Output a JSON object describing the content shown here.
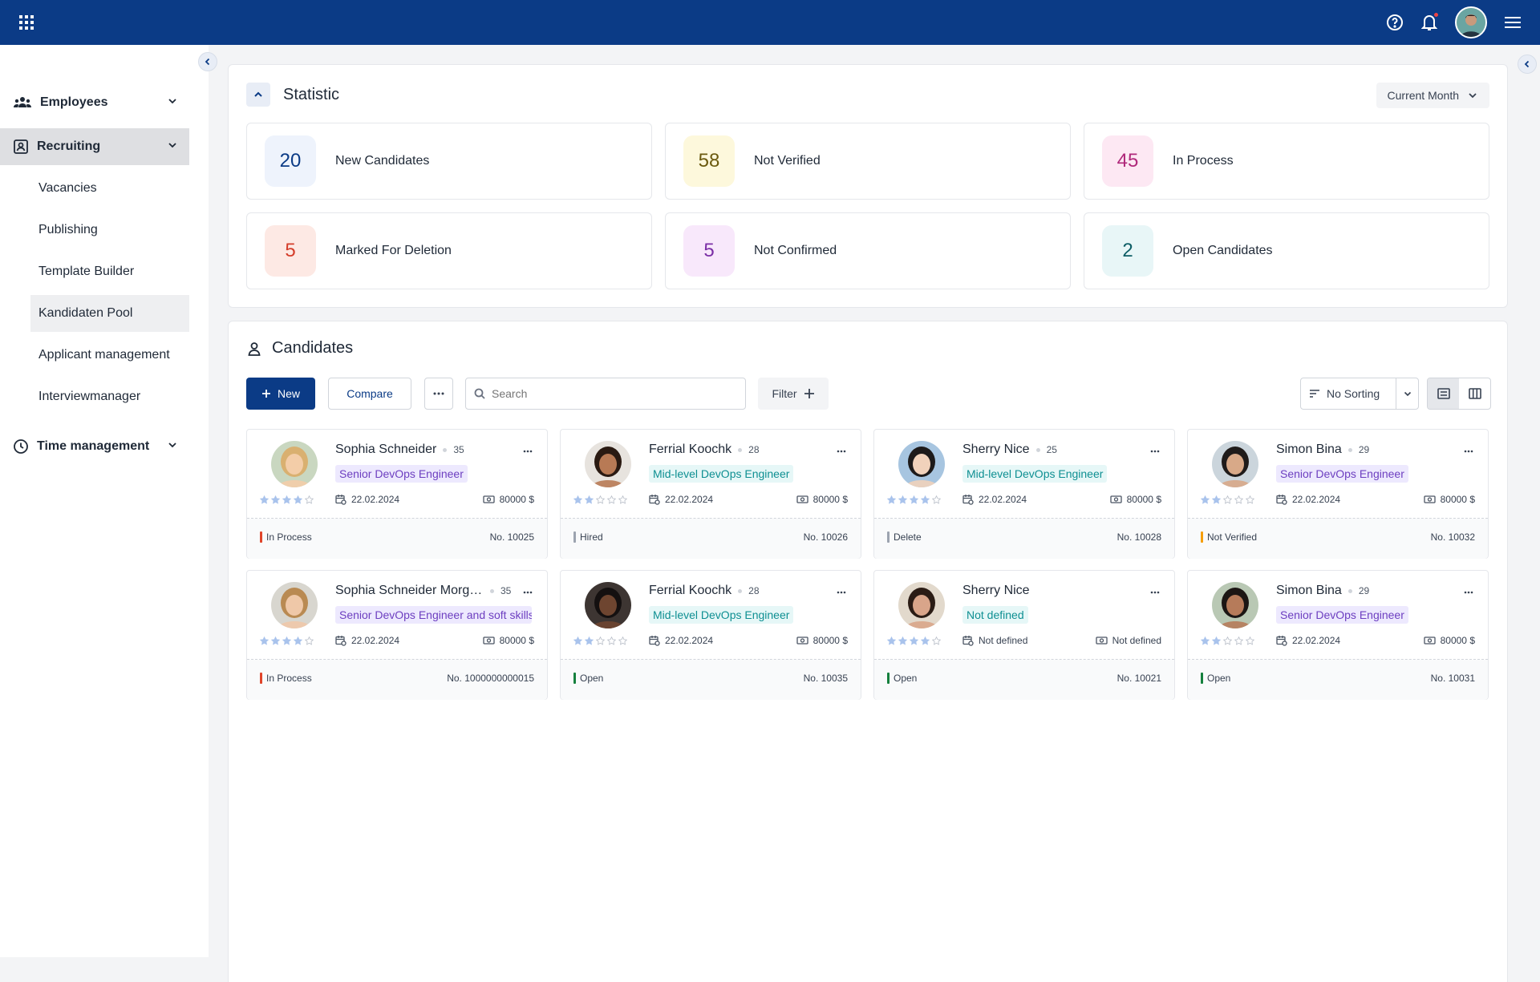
{
  "header": {
    "apps_icon": "apps-grid-icon",
    "help_icon": "help-circle-icon",
    "bell_icon": "bell-icon",
    "menu_icon": "hamburger-menu-icon"
  },
  "sidebar": {
    "groups": [
      {
        "label": "Employees",
        "icon": "people-icon"
      },
      {
        "label": "Recruiting",
        "icon": "id-card-icon"
      },
      {
        "label": "Time management",
        "icon": "clock-icon"
      }
    ],
    "recruiting_items": [
      {
        "label": "Vacancies"
      },
      {
        "label": "Publishing"
      },
      {
        "label": "Template Builder"
      },
      {
        "label": "Kandidaten Pool"
      },
      {
        "label": "Applicant management"
      },
      {
        "label": "Interviewmanager"
      }
    ]
  },
  "statistic": {
    "title": "Statistic",
    "period": "Current Month",
    "cards": [
      {
        "value": "20",
        "label": "New Candidates",
        "color": "#0b3b86",
        "bg": "#eef3fc"
      },
      {
        "value": "58",
        "label": "Not Verified",
        "color": "#6b5a0f",
        "bg": "#fdf8dc"
      },
      {
        "value": "45",
        "label": "In Process",
        "color": "#b0287a",
        "bg": "#fde8f3"
      },
      {
        "value": "5",
        "label": "Marked For Deletion",
        "color": "#d43d2a",
        "bg": "#fde9e4"
      },
      {
        "value": "5",
        "label": "Not Confirmed",
        "color": "#7b2fa6",
        "bg": "#f8e8fb"
      },
      {
        "value": "2",
        "label": "Open Candidates",
        "color": "#0e5e66",
        "bg": "#e8f6f7"
      }
    ]
  },
  "candidates": {
    "title": "Candidates",
    "new_label": "New",
    "compare_label": "Compare",
    "search_placeholder": "Search",
    "filter_label": "Filter",
    "sort_label": "No Sorting",
    "items": [
      {
        "name": "Sophia Schneider",
        "age": "35",
        "role": "Senior DevOps Engineer",
        "role_style": "purple",
        "rating": 4,
        "date": "22.02.2024",
        "salary": "80000 $",
        "status": "In Process",
        "status_color": "#e0442a",
        "number": "No. 10025",
        "hair": "#d9b070",
        "skin": "#f3cda8",
        "bg": "#c9d7c0"
      },
      {
        "name": "Ferrial Koochk",
        "age": "28",
        "role": "Mid-level DevOps Engineer",
        "role_style": "teal",
        "rating": 2,
        "date": "22.02.2024",
        "salary": "80000 $",
        "status": "Hired",
        "status_color": "#9ca3af",
        "number": "No. 10026",
        "hair": "#2a1a12",
        "skin": "#b87a55",
        "bg": "#e7e3de"
      },
      {
        "name": "Sherry Nice",
        "age": "25",
        "role": "Mid-level DevOps Engineer",
        "role_style": "teal",
        "rating": 4,
        "date": "22.02.2024",
        "salary": "80000 $",
        "status": "Delete",
        "status_color": "#9ca3af",
        "number": "No. 10028",
        "hair": "#1d1a1a",
        "skin": "#f1d2bb",
        "bg": "#a7c5e0"
      },
      {
        "name": "Simon Bina",
        "age": "29",
        "role": "Senior DevOps Engineer",
        "role_style": "purple",
        "rating": 2,
        "date": "22.02.2024",
        "salary": "80000 $",
        "status": "Not Verified",
        "status_color": "#f59e0b",
        "number": "No. 10032",
        "hair": "#1f1b1a",
        "skin": "#d8a988",
        "bg": "#cbd5dc"
      },
      {
        "name": "Sophia Schneider Morgenstern",
        "age": "35",
        "role": "Senior DevOps Engineer and soft skills",
        "role_style": "purple",
        "rating": 4,
        "date": "22.02.2024",
        "salary": "80000 $",
        "status": "In Process",
        "status_color": "#e0442a",
        "number": "No. 1000000000015",
        "hair": "#b98a52",
        "skin": "#efc8a8",
        "bg": "#d8d6cf"
      },
      {
        "name": "Ferrial Koochk",
        "age": "28",
        "role": "Mid-level DevOps Engineer",
        "role_style": "teal",
        "rating": 2,
        "date": "22.02.2024",
        "salary": "80000 $",
        "status": "Open",
        "status_color": "#15803d",
        "number": "No. 10035",
        "hair": "#141010",
        "skin": "#6e4530",
        "bg": "#3d3532"
      },
      {
        "name": "Sherry Nice",
        "age": "",
        "role": "Not defined",
        "role_style": "teal",
        "rating": 4,
        "date": "Not defined",
        "salary": "Not defined",
        "status": "Open",
        "status_color": "#15803d",
        "number": "No. 10021",
        "hair": "#2b1c15",
        "skin": "#d9a58a",
        "bg": "#e2d9cc"
      },
      {
        "name": "Simon Bina",
        "age": "29",
        "role": "Senior DevOps Engineer",
        "role_style": "purple",
        "rating": 2,
        "date": "22.02.2024",
        "salary": "80000 $",
        "status": "Open",
        "status_color": "#15803d",
        "number": "No. 10031",
        "hair": "#1c1614",
        "skin": "#b67b5a",
        "bg": "#b9c8b4"
      }
    ]
  }
}
